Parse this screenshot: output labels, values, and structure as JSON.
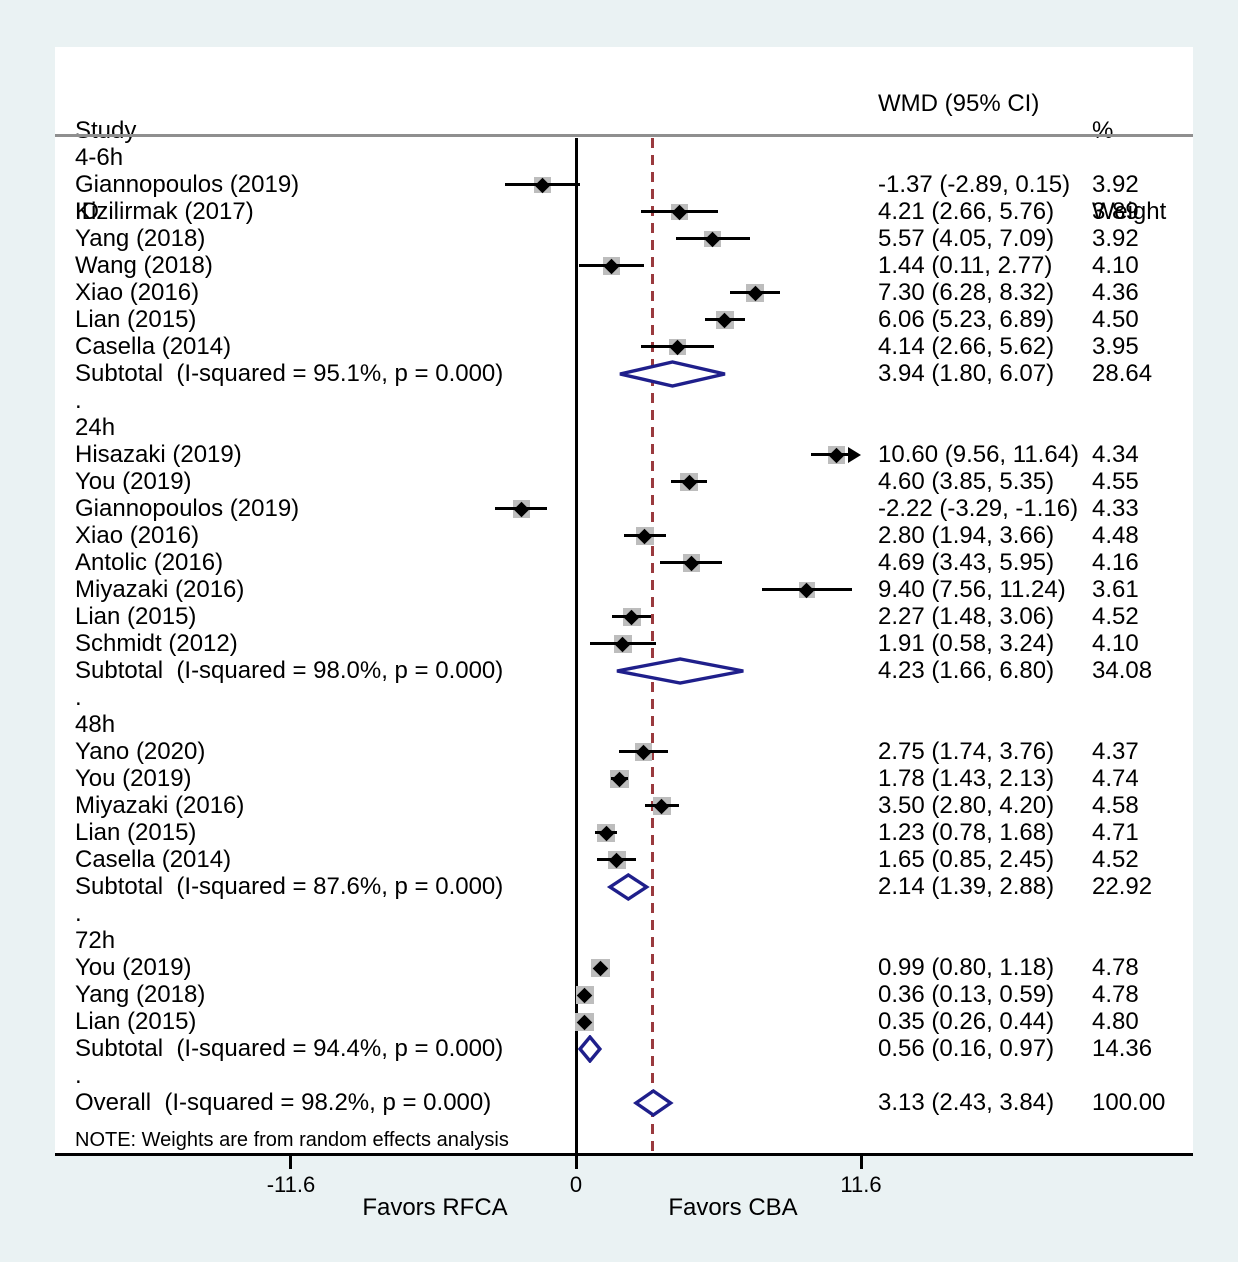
{
  "header": {
    "study1": "Study",
    "study2": "ID",
    "wmd": "WMD (95% CI)",
    "pct": "%",
    "weight": "Weight"
  },
  "colors": {
    "background": "#eaf2f3",
    "panel": "#ffffff",
    "rule_gray": "#8f8f8f",
    "dashed_line": "#9a3a3e",
    "diamond_navy": "#1f1f8b",
    "box_gray": "#bdbdbd",
    "marker_black": "#000000",
    "text": "#000000"
  },
  "chart_data": {
    "type": "forest",
    "note": "NOTE: Weights are from random effects analysis",
    "separator_label": ".",
    "x_axis": {
      "range": [
        -11.6,
        11.6
      ],
      "ticks": [
        -11.6,
        0,
        11.6
      ],
      "tick_labels": [
        "-11.6",
        "0",
        "11.6"
      ],
      "zero_line": 0,
      "overall_dashed_line": 3.13,
      "left_label": "Favors RFCA",
      "right_label": "Favors CBA"
    },
    "groups": [
      {
        "name": "4-6h",
        "studies": [
          {
            "label": "Giannopoulos (2019)",
            "wmd": -1.37,
            "lo": -2.89,
            "hi": 0.15,
            "wmd_text": "-1.37 (-2.89, 0.15)",
            "weight": 3.92,
            "weight_text": "3.92"
          },
          {
            "label": "Kizilirmak (2017)",
            "wmd": 4.21,
            "lo": 2.66,
            "hi": 5.76,
            "wmd_text": "4.21 (2.66, 5.76)",
            "weight": 3.89,
            "weight_text": "3.89"
          },
          {
            "label": "Yang (2018)",
            "wmd": 5.57,
            "lo": 4.05,
            "hi": 7.09,
            "wmd_text": "5.57 (4.05, 7.09)",
            "weight": 3.92,
            "weight_text": "3.92"
          },
          {
            "label": "Wang (2018)",
            "wmd": 1.44,
            "lo": 0.11,
            "hi": 2.77,
            "wmd_text": "1.44 (0.11, 2.77)",
            "weight": 4.1,
            "weight_text": "4.10"
          },
          {
            "label": "Xiao (2016)",
            "wmd": 7.3,
            "lo": 6.28,
            "hi": 8.32,
            "wmd_text": "7.30 (6.28, 8.32)",
            "weight": 4.36,
            "weight_text": "4.36"
          },
          {
            "label": "Lian (2015)",
            "wmd": 6.06,
            "lo": 5.23,
            "hi": 6.89,
            "wmd_text": "6.06 (5.23, 6.89)",
            "weight": 4.5,
            "weight_text": "4.50"
          },
          {
            "label": "Casella (2014)",
            "wmd": 4.14,
            "lo": 2.66,
            "hi": 5.62,
            "wmd_text": "4.14 (2.66, 5.62)",
            "weight": 3.95,
            "weight_text": "3.95"
          }
        ],
        "subtotal": {
          "label": "Subtotal  (I-squared = 95.1%, p = 0.000)",
          "wmd": 3.94,
          "lo": 1.8,
          "hi": 6.07,
          "wmd_text": "3.94 (1.80, 6.07)",
          "weight_text": "28.64"
        }
      },
      {
        "name": "24h",
        "studies": [
          {
            "label": "Hisazaki (2019)",
            "wmd": 10.6,
            "lo": 9.56,
            "hi": 11.64,
            "clip_hi": true,
            "wmd_text": "10.60 (9.56, 11.64)",
            "weight": 4.34,
            "weight_text": "4.34"
          },
          {
            "label": "You (2019)",
            "wmd": 4.6,
            "lo": 3.85,
            "hi": 5.35,
            "wmd_text": "4.60 (3.85, 5.35)",
            "weight": 4.55,
            "weight_text": "4.55"
          },
          {
            "label": "Giannopoulos (2019)",
            "wmd": -2.22,
            "lo": -3.29,
            "hi": -1.16,
            "wmd_text": "-2.22 (-3.29, -1.16)",
            "weight": 4.33,
            "weight_text": "4.33"
          },
          {
            "label": "Xiao (2016)",
            "wmd": 2.8,
            "lo": 1.94,
            "hi": 3.66,
            "wmd_text": "2.80 (1.94, 3.66)",
            "weight": 4.48,
            "weight_text": "4.48"
          },
          {
            "label": "Antolic (2016)",
            "wmd": 4.69,
            "lo": 3.43,
            "hi": 5.95,
            "wmd_text": "4.69 (3.43, 5.95)",
            "weight": 4.16,
            "weight_text": "4.16"
          },
          {
            "label": "Miyazaki (2016)",
            "wmd": 9.4,
            "lo": 7.56,
            "hi": 11.24,
            "wmd_text": "9.40 (7.56, 11.24)",
            "weight": 3.61,
            "weight_text": "3.61"
          },
          {
            "label": "Lian (2015)",
            "wmd": 2.27,
            "lo": 1.48,
            "hi": 3.06,
            "wmd_text": "2.27 (1.48, 3.06)",
            "weight": 4.52,
            "weight_text": "4.52"
          },
          {
            "label": "Schmidt (2012)",
            "wmd": 1.91,
            "lo": 0.58,
            "hi": 3.24,
            "wmd_text": "1.91 (0.58, 3.24)",
            "weight": 4.1,
            "weight_text": "4.10"
          }
        ],
        "subtotal": {
          "label": "Subtotal  (I-squared = 98.0%, p = 0.000)",
          "wmd": 4.23,
          "lo": 1.66,
          "hi": 6.8,
          "wmd_text": "4.23 (1.66, 6.80)",
          "weight_text": "34.08"
        }
      },
      {
        "name": "48h",
        "studies": [
          {
            "label": "Yano (2020)",
            "wmd": 2.75,
            "lo": 1.74,
            "hi": 3.76,
            "wmd_text": "2.75 (1.74, 3.76)",
            "weight": 4.37,
            "weight_text": "4.37"
          },
          {
            "label": "You (2019)",
            "wmd": 1.78,
            "lo": 1.43,
            "hi": 2.13,
            "wmd_text": "1.78 (1.43, 2.13)",
            "weight": 4.74,
            "weight_text": "4.74"
          },
          {
            "label": "Miyazaki (2016)",
            "wmd": 3.5,
            "lo": 2.8,
            "hi": 4.2,
            "wmd_text": "3.50 (2.80, 4.20)",
            "weight": 4.58,
            "weight_text": "4.58"
          },
          {
            "label": "Lian (2015)",
            "wmd": 1.23,
            "lo": 0.78,
            "hi": 1.68,
            "wmd_text": "1.23 (0.78, 1.68)",
            "weight": 4.71,
            "weight_text": "4.71"
          },
          {
            "label": "Casella (2014)",
            "wmd": 1.65,
            "lo": 0.85,
            "hi": 2.45,
            "wmd_text": "1.65 (0.85, 2.45)",
            "weight": 4.52,
            "weight_text": "4.52"
          }
        ],
        "subtotal": {
          "label": "Subtotal  (I-squared = 87.6%, p = 0.000)",
          "wmd": 2.14,
          "lo": 1.39,
          "hi": 2.88,
          "wmd_text": "2.14 (1.39, 2.88)",
          "weight_text": "22.92"
        }
      },
      {
        "name": "72h",
        "studies": [
          {
            "label": "You (2019)",
            "wmd": 0.99,
            "lo": 0.8,
            "hi": 1.18,
            "wmd_text": "0.99 (0.80, 1.18)",
            "weight": 4.78,
            "weight_text": "4.78"
          },
          {
            "label": "Yang (2018)",
            "wmd": 0.36,
            "lo": 0.13,
            "hi": 0.59,
            "wmd_text": "0.36 (0.13, 0.59)",
            "weight": 4.78,
            "weight_text": "4.78"
          },
          {
            "label": "Lian (2015)",
            "wmd": 0.35,
            "lo": 0.26,
            "hi": 0.44,
            "wmd_text": "0.35 (0.26, 0.44)",
            "weight": 4.8,
            "weight_text": "4.80"
          }
        ],
        "subtotal": {
          "label": "Subtotal  (I-squared = 94.4%, p = 0.000)",
          "wmd": 0.56,
          "lo": 0.16,
          "hi": 0.97,
          "wmd_text": "0.56 (0.16, 0.97)",
          "weight_text": "14.36"
        }
      }
    ],
    "overall": {
      "label": "Overall  (I-squared = 98.2%, p = 0.000)",
      "wmd": 3.13,
      "lo": 2.43,
      "hi": 3.84,
      "wmd_text": "3.13 (2.43, 3.84)",
      "weight_text": "100.00"
    }
  }
}
